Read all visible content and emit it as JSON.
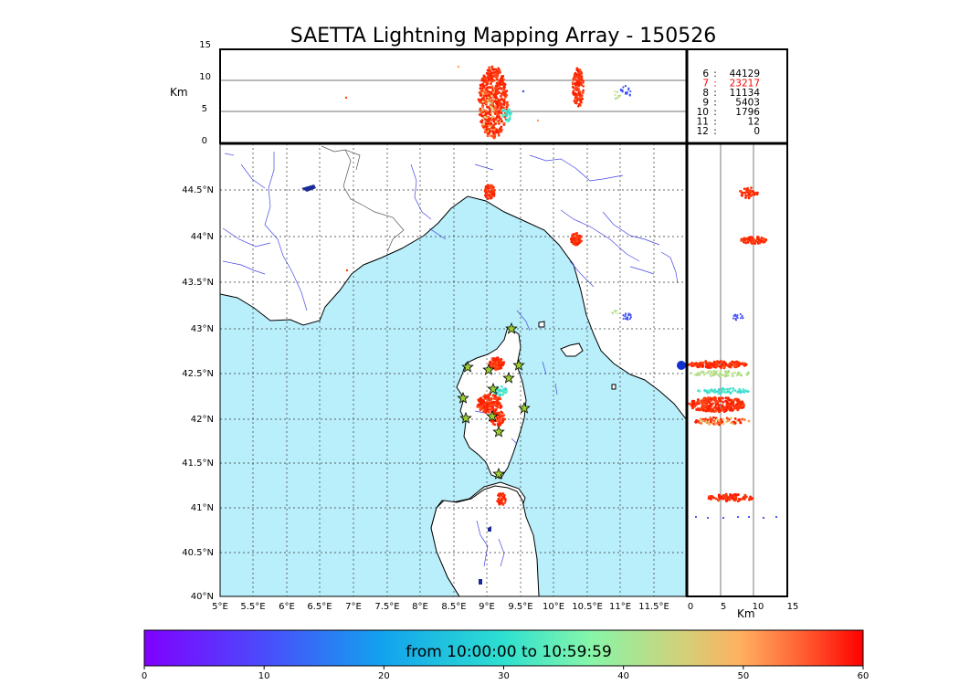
{
  "title": "SAETTA Lightning Mapping Array - 150526",
  "height_panel": {
    "unit_label": "Km",
    "y_ticks": [
      "15",
      "10",
      "5",
      "0"
    ]
  },
  "map": {
    "lat_labels": [
      "44.5°N",
      "44°N",
      "43.5°N",
      "43°N",
      "42.5°N",
      "42°N",
      "41.5°N",
      "41°N",
      "40.5°N",
      "40°N"
    ],
    "lon_labels": [
      "5°E",
      "5.5°E",
      "6°E",
      "6.5°E",
      "7°E",
      "7.5°E",
      "8°E",
      "8.5°E",
      "9°E",
      "9.5°E",
      "10°E",
      "10.5°E",
      "11°E",
      "11.5°E"
    ],
    "sea_color": "#b9eefb",
    "river_color": "#4646e6",
    "station_marker": "star-icon",
    "station_color": "#9acd32"
  },
  "side_panel": {
    "x_ticks": [
      "0",
      "5",
      "10",
      "15"
    ],
    "unit_label": "Km"
  },
  "stats": [
    {
      "stations": "6",
      "count": "44129",
      "color": "#000000"
    },
    {
      "stations": "7",
      "count": "23217",
      "color": "#ff0000"
    },
    {
      "stations": "8",
      "count": "11134",
      "color": "#000000"
    },
    {
      "stations": "9",
      "count": "5403",
      "color": "#000000"
    },
    {
      "stations": "10",
      "count": "1796",
      "color": "#000000"
    },
    {
      "stations": "11",
      "count": "12",
      "color": "#000000"
    },
    {
      "stations": "12",
      "count": "0",
      "color": "#000000"
    }
  ],
  "colorbar": {
    "label": "from 10:00:00 to 10:59:59",
    "ticks": [
      "0",
      "10",
      "20",
      "30",
      "40",
      "50",
      "60"
    ],
    "colormap": "rainbow"
  }
}
